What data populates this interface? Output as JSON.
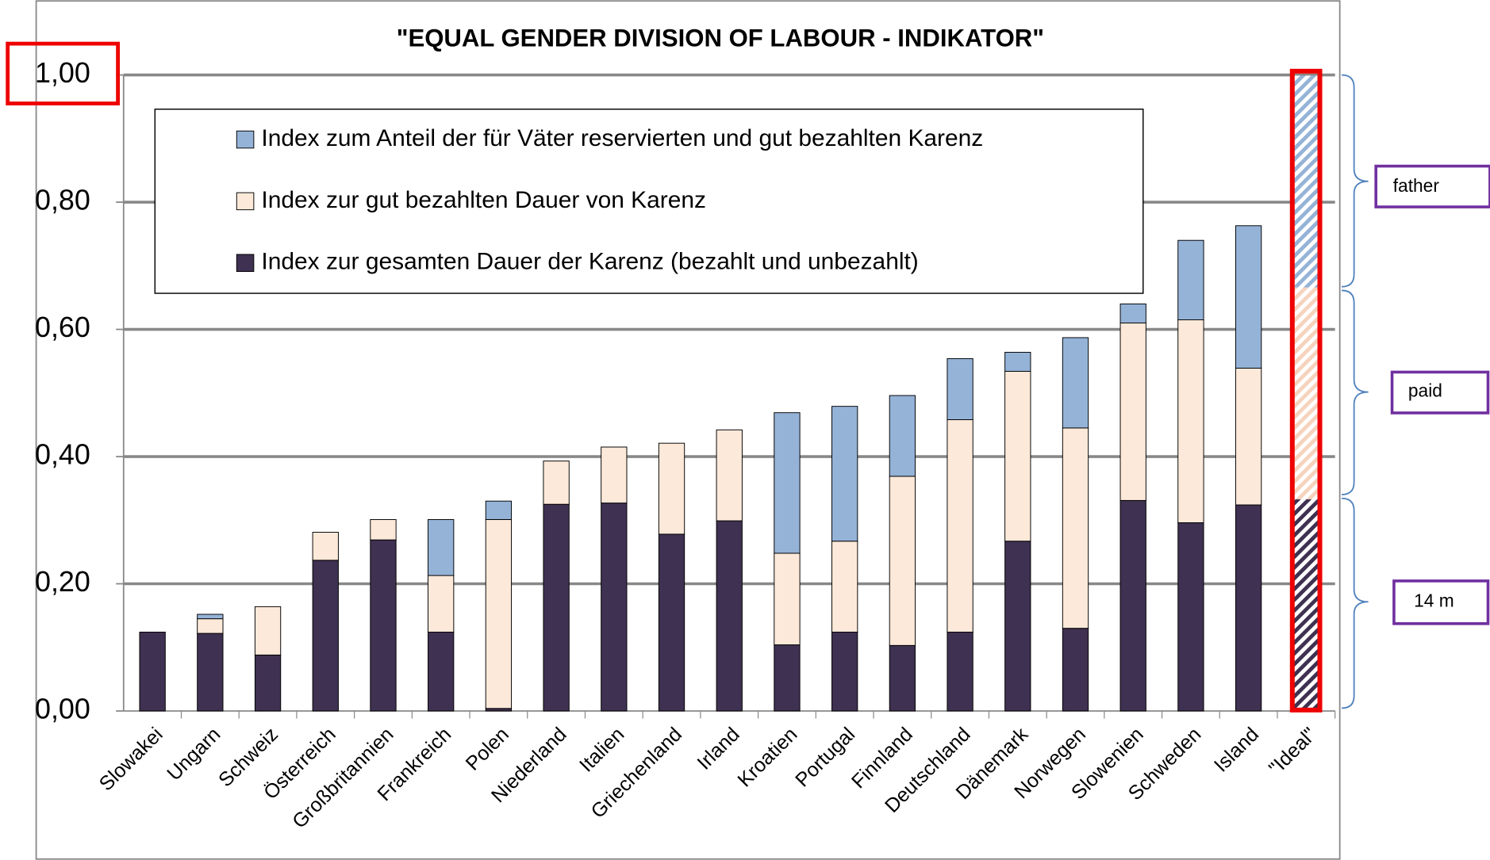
{
  "chart_data": {
    "type": "stacked_bar",
    "title": "\"EQUAL GENDER DIVISION OF LABOUR - INDIKATOR\"",
    "categories": [
      "Slowakei",
      "Ungarn",
      "Schweiz",
      "Österreich",
      "Großbritannien",
      "Frankreich",
      "Polen",
      "Niederland",
      "Italien",
      "Griechenland",
      "Irland",
      "Kroatien",
      "Portugal",
      "Finnland",
      "Deutschland",
      "Dänemark",
      "Norwegen",
      "Slowenien",
      "Schweden",
      "Island",
      "\"Ideal\""
    ],
    "series": [
      {
        "name": "Index zur gesamten Dauer der Karenz (bezahlt und unbezahlt)",
        "color": "#3f3151",
        "values": [
          0.124,
          0.122,
          0.088,
          0.237,
          0.269,
          0.124,
          0.004,
          0.325,
          0.327,
          0.278,
          0.299,
          0.104,
          0.124,
          0.103,
          0.124,
          0.267,
          0.13,
          0.331,
          0.296,
          0.324,
          0.333
        ]
      },
      {
        "name": "Index zur gut bezahlten Dauer von Karenz",
        "color": "#fde9d9",
        "values": [
          0,
          0.023,
          0.076,
          0.044,
          0.032,
          0.089,
          0.297,
          0.068,
          0.088,
          0.143,
          0.143,
          0.144,
          0.143,
          0.266,
          0.334,
          0.267,
          0.315,
          0.279,
          0.319,
          0.215,
          0.333
        ]
      },
      {
        "name": "Index zum Anteil der für Väter reservierten und gut bezahlten Karenz",
        "color": "#95b3d7",
        "values": [
          0,
          0.007,
          0,
          0,
          0,
          0.088,
          0.029,
          0,
          0,
          0,
          0,
          0.221,
          0.212,
          0.127,
          0.096,
          0.03,
          0.142,
          0.03,
          0.125,
          0.224,
          0.333
        ]
      }
    ],
    "hatched_index": 20,
    "ylim": [
      0,
      1
    ],
    "yticks": [
      {
        "value": 0,
        "label": "0,00"
      },
      {
        "value": 0.2,
        "label": "0,20"
      },
      {
        "value": 0.4,
        "label": "0,40"
      },
      {
        "value": 0.6,
        "label": "0,60"
      },
      {
        "value": 0.8,
        "label": "0,80"
      },
      {
        "value": 1,
        "label": "1,00"
      }
    ],
    "grid": true,
    "annotations": [
      "father",
      "paid",
      "14 m"
    ]
  }
}
